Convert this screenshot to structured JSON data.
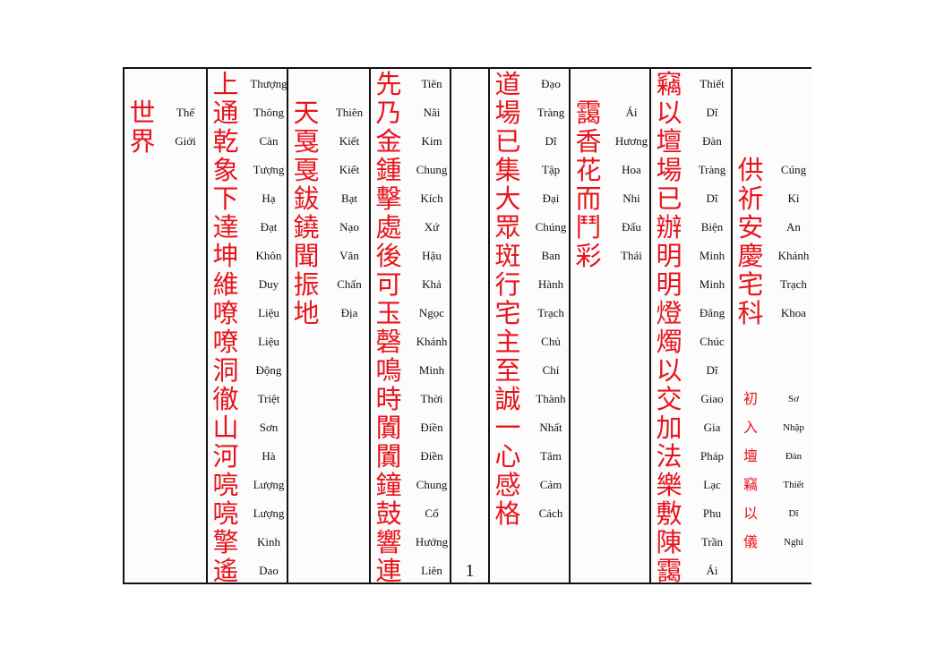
{
  "columns": [
    {
      "hanzi": [
        "世",
        "界"
      ],
      "readings": [
        "Thế",
        "Giới"
      ]
    },
    {
      "hanzi": [
        "上",
        "通",
        "乾",
        "象",
        "下",
        "達",
        "坤",
        "維",
        "嘹",
        "嘹",
        "洞",
        "徹",
        "山",
        "河",
        "喨",
        "喨",
        "擎",
        "遙"
      ],
      "readings": [
        "Thượng",
        "Thông",
        "Càn",
        "Tượng",
        "Hạ",
        "Đạt",
        "Khôn",
        "Duy",
        "Liệu",
        "Liệu",
        "Động",
        "Triệt",
        "Sơn",
        "Hà",
        "Lượng",
        "Lượng",
        "Kinh",
        "Dao"
      ]
    },
    {
      "hanzi": [
        "天",
        "戛",
        "戛",
        "鈸",
        "鐃",
        "聞",
        "振",
        "地"
      ],
      "readings": [
        "Thiên",
        "Kiết",
        "Kiết",
        "Bạt",
        "Nạo",
        "Văn",
        "Chấn",
        "Địa"
      ]
    },
    {
      "hanzi": [
        "先",
        "乃",
        "金",
        "鍾",
        "擊",
        "處",
        "後",
        "可",
        "玉",
        "磬",
        "鳴",
        "時",
        "闐",
        "闐",
        "鐘",
        "鼓",
        "響",
        "連"
      ],
      "readings": [
        "Tiên",
        "Nãi",
        "Kim",
        "Chung",
        "Kích",
        "Xứ",
        "Hậu",
        "Khả",
        "Ngọc",
        "Khánh",
        "Minh",
        "Thời",
        "Điền",
        "Điền",
        "Chung",
        "Cổ",
        "Hưởng",
        "Liên"
      ]
    },
    {
      "page_number": "1"
    },
    {
      "hanzi": [
        "道",
        "場",
        "已",
        "集",
        "大",
        "眾",
        "斑",
        "行",
        "宅",
        "主",
        "至",
        "誠",
        "一",
        "心",
        "感",
        "格"
      ],
      "readings": [
        "Đạo",
        "Tràng",
        "Dĩ",
        "Tập",
        "Đại",
        "Chúng",
        "Ban",
        "Hành",
        "Trạch",
        "Chủ",
        "Chí",
        "Thành",
        "Nhất",
        "Tâm",
        "Cảm",
        "Cách"
      ]
    },
    {
      "hanzi": [
        "靄",
        "香",
        "花",
        "而",
        "鬥",
        "彩"
      ],
      "readings": [
        "Ái",
        "Hương",
        "Hoa",
        "Nhi",
        "Đấu",
        "Thái"
      ]
    },
    {
      "hanzi": [
        "竊",
        "以",
        "壇",
        "場",
        "已",
        "辦",
        "明",
        "明",
        "燈",
        "燭",
        "以",
        "交",
        "加",
        "法",
        "樂",
        "敷",
        "陳",
        "靄"
      ],
      "readings": [
        "Thiết",
        "Dĩ",
        "Đàn",
        "Tràng",
        "Dĩ",
        "Biện",
        "Minh",
        "Minh",
        "Đăng",
        "Chúc",
        "Dĩ",
        "Giao",
        "Gia",
        "Pháp",
        "Lạc",
        "Phu",
        "Trần",
        "Ái"
      ]
    },
    {
      "hanzi": [
        "供",
        "祈",
        "安",
        "慶",
        "宅",
        "科"
      ],
      "readings": [
        "Cúng",
        "Kì",
        "An",
        "Khánh",
        "Trạch",
        "Khoa"
      ],
      "subtitle": {
        "hanzi": [
          "初",
          "入",
          "壇",
          "竊",
          "以",
          "儀"
        ],
        "readings": [
          "Sơ",
          "Nhập",
          "Đàn",
          "Thiết",
          "Dĩ",
          "Nghi"
        ]
      }
    }
  ]
}
